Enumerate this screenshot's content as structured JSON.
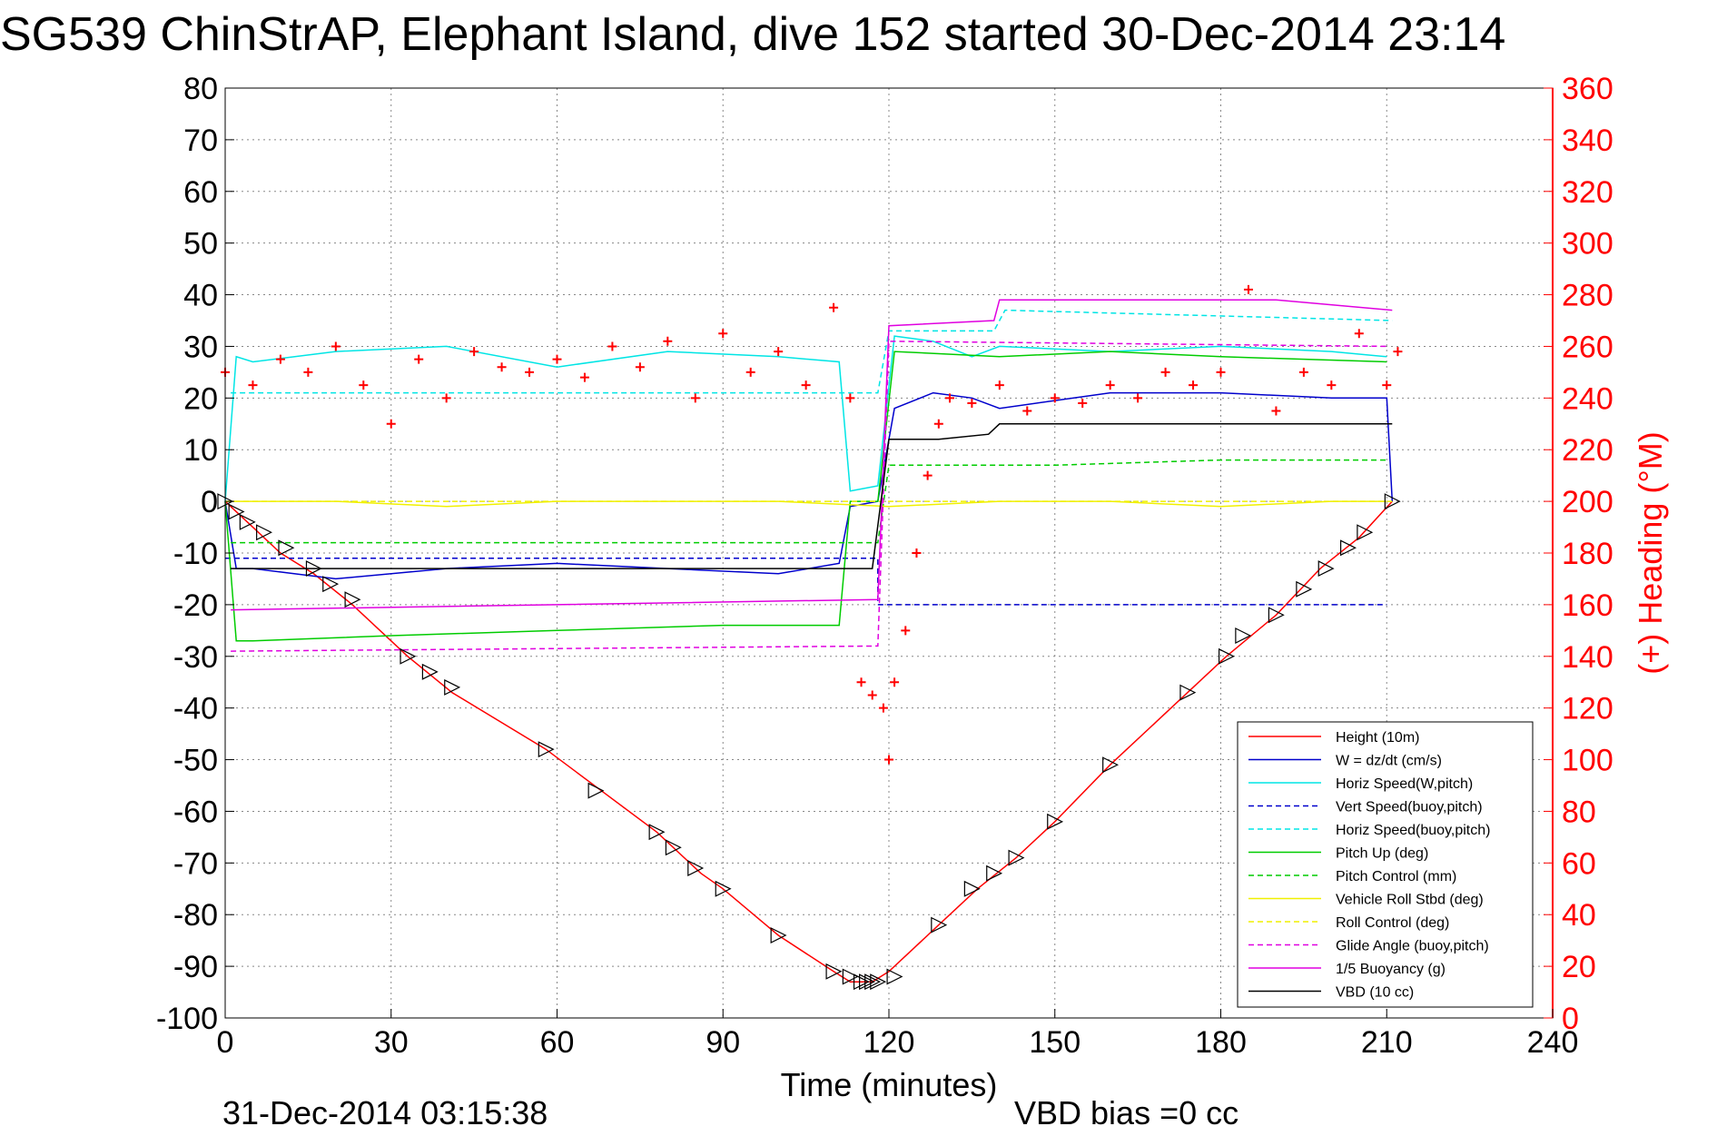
{
  "header": {
    "title": "SG539 ChinStrAP, Elephant Island, dive 152 started 30-Dec-2014 23:14"
  },
  "footer": {
    "timestamp": "31-Dec-2014 03:15:38",
    "vbd_bias": "VBD bias =0 cc"
  },
  "colors": {
    "height": "#ff0000",
    "w": "#0000cc",
    "horiz_speed": "#00e5e5",
    "pitch": "#00cc00",
    "roll": "#f0f000",
    "glide": "#e000e0",
    "vbd": "#000000",
    "heading": "#ff0000",
    "right_axis": "#ff0000"
  },
  "chart_data": {
    "type": "line",
    "title": "SG539 ChinStrAP, Elephant Island, dive 152 started 30-Dec-2014 23:14",
    "xlabel": "Time (minutes)",
    "ylabel": "",
    "ylabel_right": "(+) Heading (°M)",
    "xlim": [
      0,
      240
    ],
    "ylim": [
      -100,
      80
    ],
    "ylim_right": [
      0,
      360
    ],
    "xticks": [
      "0",
      "30",
      "60",
      "90",
      "120",
      "150",
      "180",
      "210",
      "240"
    ],
    "yticks": [
      "80",
      "70",
      "60",
      "50",
      "40",
      "30",
      "20",
      "10",
      "0",
      "-10",
      "-20",
      "-30",
      "-40",
      "-50",
      "-60",
      "-70",
      "-80",
      "-90",
      "-100"
    ],
    "yticks_right": [
      "360",
      "340",
      "320",
      "300",
      "280",
      "260",
      "240",
      "220",
      "200",
      "180",
      "160",
      "140",
      "120",
      "100",
      "80",
      "60",
      "40",
      "20",
      "0"
    ],
    "grid": true,
    "legend_position": "bottom-right",
    "legend": [
      {
        "label": "Height (10m)",
        "color": "#ff0000",
        "dash": "solid"
      },
      {
        "label": "W = dz/dt (cm/s)",
        "color": "#0000cc",
        "dash": "solid"
      },
      {
        "label": "Horiz Speed(W,pitch)",
        "color": "#00e5e5",
        "dash": "solid"
      },
      {
        "label": "Vert Speed(buoy,pitch)",
        "color": "#0000cc",
        "dash": "dashed"
      },
      {
        "label": "Horiz Speed(buoy,pitch)",
        "color": "#00e5e5",
        "dash": "dashed"
      },
      {
        "label": "Pitch Up (deg)",
        "color": "#00cc00",
        "dash": "solid"
      },
      {
        "label": "Pitch Control (mm)",
        "color": "#00cc00",
        "dash": "dashed"
      },
      {
        "label": "Vehicle Roll Stbd (deg)",
        "color": "#f0f000",
        "dash": "solid"
      },
      {
        "label": "Roll Control (deg)",
        "color": "#f0f000",
        "dash": "dashed"
      },
      {
        "label": "Glide Angle (buoy,pitch)",
        "color": "#e000e0",
        "dash": "dashed"
      },
      {
        "label": "1/5 Buoyancy (g)",
        "color": "#e000e0",
        "dash": "solid"
      },
      {
        "label": "VBD (10 cc)",
        "color": "#000000",
        "dash": "solid"
      }
    ],
    "series": [
      {
        "name": "Height (10m)",
        "x": [
          0,
          5,
          10,
          16,
          23,
          33,
          41,
          58,
          68,
          78,
          86,
          90,
          100,
          110,
          113,
          117,
          120,
          129,
          136,
          143,
          150,
          160,
          174,
          181,
          190,
          198,
          205,
          211
        ],
        "y": [
          0,
          -5,
          -10,
          -14,
          -20,
          -30,
          -37,
          -48,
          -56,
          -64,
          -72,
          -75,
          -84,
          -91,
          -93,
          -93,
          -91,
          -82,
          -75,
          -69,
          -62,
          -51,
          -37,
          -30,
          -22,
          -13,
          -7,
          0
        ]
      },
      {
        "name": "W = dz/dt (cm/s)",
        "x": [
          0,
          2,
          5,
          20,
          40,
          60,
          80,
          100,
          111,
          113,
          118,
          121,
          128,
          135,
          140,
          160,
          180,
          200,
          210,
          211
        ],
        "y": [
          0,
          -13,
          -13,
          -15,
          -13,
          -12,
          -13,
          -14,
          -12,
          -1,
          0,
          18,
          21,
          20,
          18,
          21,
          21,
          20,
          20,
          0
        ]
      },
      {
        "name": "Horiz Speed(W,pitch)",
        "x": [
          0,
          2,
          5,
          20,
          40,
          60,
          80,
          100,
          111,
          113,
          118,
          121,
          128,
          135,
          140,
          160,
          180,
          200,
          210
        ],
        "y": [
          0,
          28,
          27,
          29,
          30,
          26,
          29,
          28,
          27,
          2,
          3,
          32,
          31,
          28,
          30,
          29,
          30,
          29,
          28
        ]
      },
      {
        "name": "Vert Speed(buoy,pitch)",
        "x": [
          0,
          118,
          118,
          210
        ],
        "y": [
          -11,
          -11,
          -20,
          -20
        ]
      },
      {
        "name": "Horiz Speed(buoy,pitch)",
        "x": [
          1,
          118,
          120,
          139,
          141,
          211
        ],
        "y": [
          21,
          21,
          33,
          33,
          37,
          35
        ]
      },
      {
        "name": "Pitch Up (deg)",
        "x": [
          0,
          2,
          5,
          30,
          60,
          90,
          111,
          113,
          118,
          121,
          140,
          160,
          180,
          210
        ],
        "y": [
          0,
          -27,
          -27,
          -26,
          -25,
          -24,
          -24,
          0,
          0,
          29,
          28,
          29,
          28,
          27
        ]
      },
      {
        "name": "Pitch Control (mm)",
        "x": [
          1,
          118,
          120,
          150,
          180,
          210
        ],
        "y": [
          -8,
          -8,
          7,
          7,
          8,
          8
        ]
      },
      {
        "name": "Vehicle Roll Stbd (deg)",
        "x": [
          0,
          20,
          40,
          60,
          80,
          100,
          120,
          140,
          160,
          180,
          200,
          210
        ],
        "y": [
          0,
          0,
          -1,
          0,
          0,
          0,
          -1,
          0,
          0,
          -1,
          0,
          0
        ]
      },
      {
        "name": "Roll Control (deg)",
        "x": [
          0,
          2,
          3,
          210,
          211
        ],
        "y": [
          0,
          0,
          0,
          0,
          0
        ]
      },
      {
        "name": "Glide Angle (buoy,pitch)",
        "x": [
          1,
          118,
          120,
          210
        ],
        "y": [
          -29,
          -28,
          31,
          30
        ]
      },
      {
        "name": "1/5 Buoyancy (g)",
        "x": [
          1,
          118,
          120,
          139,
          140,
          190,
          211
        ],
        "y": [
          -21,
          -19,
          34,
          35,
          39,
          39,
          37
        ]
      },
      {
        "name": "VBD (10 cc)",
        "x": [
          1,
          114,
          117,
          120,
          129,
          138,
          140,
          211
        ],
        "y": [
          -13,
          -13,
          -13,
          12,
          12,
          13,
          15,
          15
        ]
      },
      {
        "name": "(+) Heading (°M)",
        "axis": "right",
        "x": [
          0,
          5,
          10,
          15,
          20,
          25,
          30,
          35,
          40,
          45,
          50,
          55,
          60,
          65,
          70,
          75,
          80,
          85,
          90,
          95,
          100,
          105,
          110,
          113,
          115,
          117,
          119,
          120,
          121,
          123,
          125,
          127,
          129,
          131,
          135,
          140,
          145,
          150,
          155,
          160,
          165,
          170,
          175,
          180,
          185,
          190,
          195,
          200,
          205,
          210,
          212
        ],
        "y": [
          250,
          245,
          255,
          250,
          260,
          245,
          230,
          255,
          240,
          258,
          252,
          250,
          255,
          248,
          260,
          252,
          262,
          240,
          265,
          250,
          258,
          245,
          275,
          240,
          130,
          125,
          120,
          100,
          130,
          150,
          180,
          210,
          230,
          240,
          238,
          245,
          235,
          240,
          238,
          245,
          240,
          250,
          245,
          250,
          282,
          235,
          250,
          245,
          265,
          245,
          258
        ]
      }
    ],
    "markers": {
      "label": "triangle markers on depth trace",
      "x": [
        0,
        2,
        4,
        7,
        11,
        16,
        19,
        23,
        33,
        37,
        41,
        58,
        67,
        78,
        81,
        85,
        90,
        100,
        110,
        113,
        115,
        116,
        117,
        118,
        121,
        129,
        135,
        139,
        143,
        150,
        160,
        174,
        181,
        184,
        190,
        195,
        199,
        203,
        206,
        211
      ],
      "y": [
        0,
        -2,
        -4,
        -6,
        -9,
        -13,
        -16,
        -19,
        -30,
        -33,
        -36,
        -48,
        -56,
        -64,
        -67,
        -71,
        -75,
        -84,
        -91,
        -92,
        -93,
        -93,
        -93,
        -93,
        -92,
        -82,
        -75,
        -72,
        -69,
        -62,
        -51,
        -37,
        -30,
        -26,
        -22,
        -17,
        -13,
        -9,
        -6,
        0
      ]
    }
  }
}
